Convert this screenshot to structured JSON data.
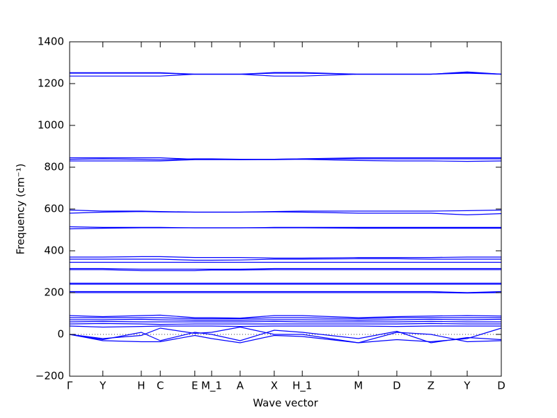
{
  "chart_data": {
    "type": "line",
    "xlabel": "Wave vector",
    "ylabel": "Frequency (cm⁻¹)",
    "color": "#0000ff",
    "zero_line": true,
    "xlim": [
      0,
      1
    ],
    "ylim": [
      -200,
      1400
    ],
    "xticks": [
      {
        "value": 0,
        "label": "Γ"
      },
      {
        "value": 0.077,
        "label": "Y"
      },
      {
        "value": 0.166,
        "label": "H"
      },
      {
        "value": 0.21,
        "label": "C"
      },
      {
        "value": 0.29,
        "label": "E"
      },
      {
        "value": 0.329,
        "label": "M_1"
      },
      {
        "value": 0.395,
        "label": "A"
      },
      {
        "value": 0.474,
        "label": "X"
      },
      {
        "value": 0.539,
        "label": "H_1"
      },
      {
        "value": 0.669,
        "label": "M"
      },
      {
        "value": 0.758,
        "label": "D"
      },
      {
        "value": 0.837,
        "label": "Z"
      },
      {
        "value": 0.921,
        "label": "Y"
      },
      {
        "value": 1,
        "label": "D"
      }
    ],
    "yticks": [
      {
        "value": -200,
        "label": "−200"
      },
      0,
      200,
      400,
      600,
      800,
      1000,
      1200,
      1400
    ],
    "x": [
      0,
      0.077,
      0.166,
      0.21,
      0.29,
      0.329,
      0.395,
      0.474,
      0.539,
      0.669,
      0.758,
      0.837,
      0.921,
      1
    ],
    "series": [
      {
        "values": [
          1252,
          1252,
          1252,
          1252,
          1245,
          1245,
          1245,
          1253,
          1253,
          1245,
          1245,
          1245,
          1253,
          1245
        ]
      },
      {
        "values": [
          1236,
          1236,
          1236,
          1236,
          1245,
          1245,
          1245,
          1236,
          1236,
          1245,
          1245,
          1245,
          1250,
          1245
        ]
      },
      {
        "values": [
          1250,
          1250,
          1250,
          1250,
          1245,
          1245,
          1245,
          1250,
          1250,
          1245,
          1245,
          1245,
          1256,
          1245
        ]
      },
      {
        "values": [
          845,
          845,
          845,
          845,
          838,
          838,
          836,
          838,
          840,
          845,
          845,
          845,
          845,
          845
        ]
      },
      {
        "values": [
          830,
          830,
          830,
          830,
          836,
          836,
          836,
          836,
          838,
          832,
          830,
          830,
          828,
          830
        ]
      },
      {
        "values": [
          838,
          840,
          838,
          836,
          840,
          840,
          838,
          838,
          840,
          840,
          840,
          840,
          840,
          840
        ]
      },
      {
        "values": [
          595,
          590,
          590,
          588,
          585,
          585,
          585,
          588,
          590,
          590,
          590,
          590,
          592,
          595
        ]
      },
      {
        "values": [
          580,
          585,
          588,
          586,
          585,
          585,
          585,
          586,
          585,
          580,
          580,
          580,
          572,
          578
        ]
      },
      {
        "values": [
          515,
          512,
          512,
          512,
          510,
          510,
          510,
          512,
          512,
          512,
          512,
          512,
          512,
          512
        ]
      },
      {
        "values": [
          505,
          508,
          510,
          510,
          510,
          510,
          510,
          510,
          510,
          508,
          508,
          508,
          508,
          508
        ]
      },
      {
        "values": [
          370,
          370,
          372,
          372,
          368,
          368,
          368,
          365,
          365,
          368,
          368,
          368,
          370,
          370
        ]
      },
      {
        "values": [
          360,
          360,
          360,
          360,
          355,
          355,
          356,
          360,
          360,
          362,
          362,
          360,
          360,
          360
        ]
      },
      {
        "values": [
          345,
          345,
          345,
          345,
          345,
          345,
          345,
          345,
          345,
          345,
          345,
          345,
          345,
          345
        ]
      },
      {
        "values": [
          315,
          315,
          312,
          312,
          312,
          312,
          312,
          315,
          315,
          315,
          315,
          315,
          315,
          315
        ]
      },
      {
        "values": [
          310,
          310,
          305,
          305,
          305,
          308,
          308,
          310,
          310,
          310,
          310,
          310,
          310,
          310
        ]
      },
      {
        "values": [
          245,
          245,
          245,
          245,
          245,
          245,
          245,
          245,
          245,
          245,
          245,
          245,
          245,
          245
        ]
      },
      {
        "values": [
          240,
          240,
          240,
          240,
          240,
          240,
          240,
          240,
          240,
          240,
          240,
          240,
          240,
          240
        ]
      },
      {
        "values": [
          205,
          205,
          205,
          205,
          205,
          205,
          205,
          205,
          205,
          205,
          205,
          205,
          200,
          205
        ]
      },
      {
        "values": [
          200,
          200,
          200,
          200,
          200,
          200,
          200,
          200,
          200,
          200,
          200,
          200,
          198,
          200
        ]
      },
      {
        "values": [
          90,
          85,
          90,
          92,
          80,
          80,
          78,
          90,
          90,
          80,
          85,
          88,
          90,
          88
        ]
      },
      {
        "values": [
          80,
          80,
          80,
          80,
          75,
          75,
          75,
          80,
          80,
          75,
          80,
          80,
          80,
          80
        ]
      },
      {
        "values": [
          70,
          70,
          72,
          70,
          68,
          68,
          68,
          70,
          70,
          68,
          70,
          72,
          70,
          72
        ]
      },
      {
        "values": [
          60,
          62,
          60,
          60,
          60,
          60,
          60,
          62,
          60,
          60,
          60,
          62,
          60,
          60
        ]
      },
      {
        "values": [
          50,
          52,
          50,
          48,
          50,
          50,
          50,
          50,
          50,
          50,
          50,
          52,
          50,
          50
        ]
      },
      {
        "values": [
          40,
          35,
          38,
          40,
          40,
          40,
          38,
          40,
          40,
          40,
          38,
          40,
          40,
          40
        ]
      },
      {
        "values": [
          0,
          -20,
          -5,
          30,
          5,
          10,
          35,
          0,
          0,
          -40,
          10,
          0,
          -35,
          -30
        ]
      },
      {
        "values": [
          0,
          -30,
          -35,
          -35,
          -5,
          -20,
          -40,
          -5,
          -10,
          -40,
          -25,
          -35,
          -20,
          30
        ]
      },
      {
        "values": [
          0,
          -25,
          10,
          -30,
          10,
          0,
          -30,
          20,
          10,
          -20,
          15,
          -40,
          -15,
          -25
        ]
      }
    ]
  }
}
